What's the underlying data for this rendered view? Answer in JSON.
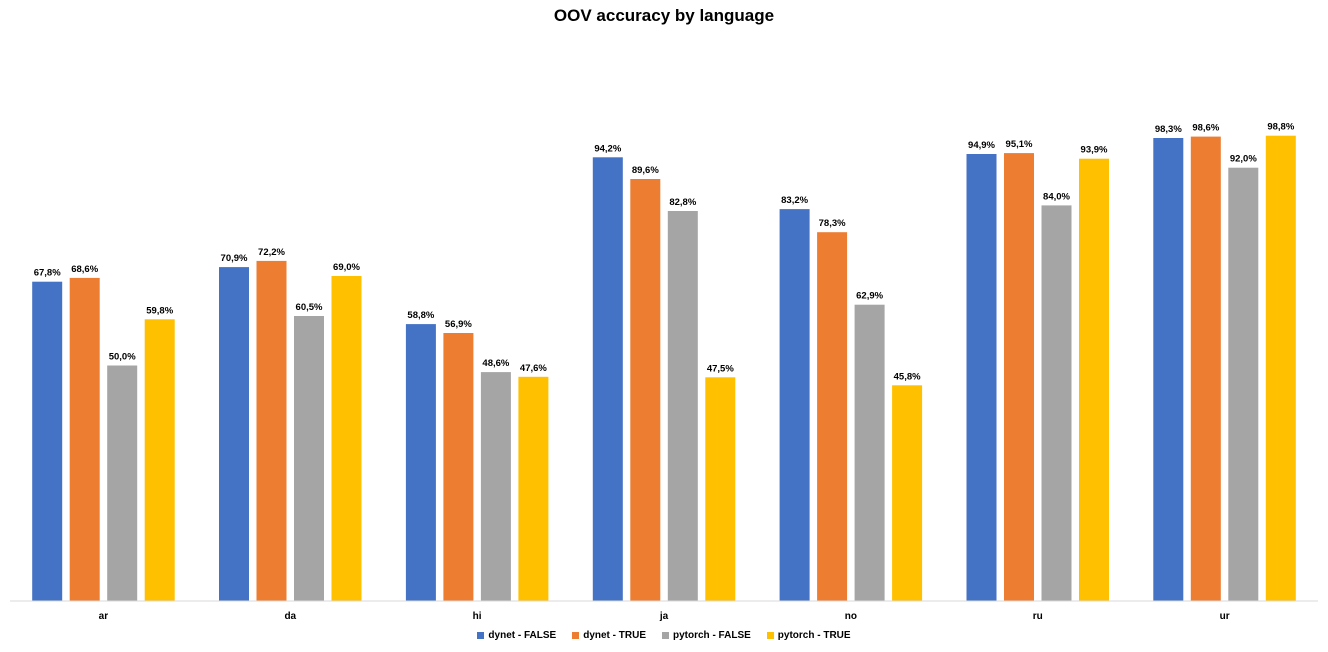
{
  "chart_data": {
    "type": "bar",
    "title": "OOV accuracy by language",
    "xlabel": "",
    "ylabel": "",
    "ylim": [
      0,
      100
    ],
    "grid": false,
    "legend_position": "bottom",
    "categories": [
      "ar",
      "da",
      "hi",
      "ja",
      "no",
      "ru",
      "ur"
    ],
    "series": [
      {
        "name": "dynet - FALSE",
        "color": "#4472C4",
        "values": [
          67.8,
          70.9,
          58.8,
          94.2,
          83.2,
          94.9,
          98.3
        ],
        "labels": [
          "67,8%",
          "70,9%",
          "58,8%",
          "94,2%",
          "83,2%",
          "94,9%",
          "98,3%"
        ]
      },
      {
        "name": "dynet - TRUE",
        "color": "#ED7D31",
        "values": [
          68.6,
          72.2,
          56.9,
          89.6,
          78.3,
          95.1,
          98.6
        ],
        "labels": [
          "68,6%",
          "72,2%",
          "56,9%",
          "89,6%",
          "78,3%",
          "95,1%",
          "98,6%"
        ]
      },
      {
        "name": "pytorch - FALSE",
        "color": "#A5A5A5",
        "values": [
          50.0,
          60.5,
          48.6,
          82.8,
          62.9,
          84.0,
          92.0
        ],
        "labels": [
          "50,0%",
          "60,5%",
          "48,6%",
          "82,8%",
          "62,9%",
          "84,0%",
          "92,0%"
        ]
      },
      {
        "name": "pytorch - TRUE",
        "color": "#FFC000",
        "values": [
          59.8,
          69.0,
          47.6,
          47.5,
          45.8,
          93.9,
          98.8
        ],
        "labels": [
          "59,8%",
          "69,0%",
          "47,6%",
          "47,5%",
          "45,8%",
          "93,9%",
          "98,8%"
        ]
      }
    ]
  }
}
